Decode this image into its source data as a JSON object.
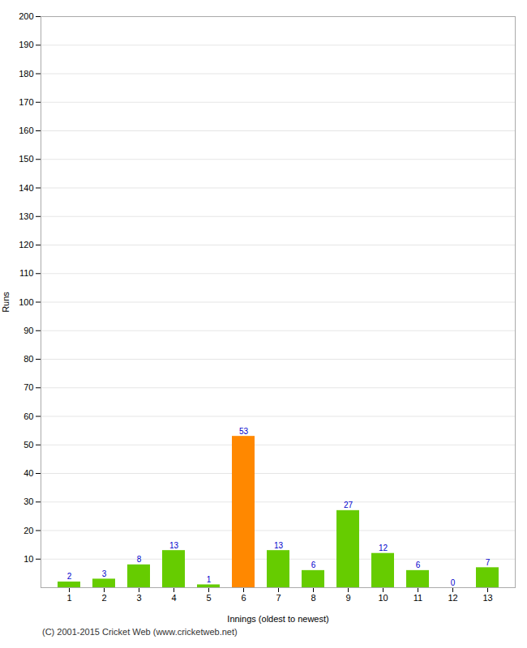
{
  "chart_data": {
    "type": "bar",
    "xlabel": "Innings (oldest to newest)",
    "ylabel": "Runs",
    "categories": [
      "1",
      "2",
      "3",
      "4",
      "5",
      "6",
      "7",
      "8",
      "9",
      "10",
      "11",
      "12",
      "13"
    ],
    "values": [
      2,
      3,
      8,
      13,
      1,
      53,
      13,
      6,
      27,
      12,
      6,
      0,
      7
    ],
    "colors": [
      "#66cc00",
      "#66cc00",
      "#66cc00",
      "#66cc00",
      "#66cc00",
      "#ff8800",
      "#66cc00",
      "#66cc00",
      "#66cc00",
      "#66cc00",
      "#66cc00",
      "#66cc00",
      "#66cc00"
    ],
    "ylim": [
      0,
      200
    ],
    "yticks": [
      10,
      20,
      30,
      40,
      50,
      60,
      70,
      80,
      90,
      100,
      110,
      120,
      130,
      140,
      150,
      160,
      170,
      180,
      190,
      200
    ],
    "grid": true,
    "data_labels": true,
    "label_color": "#0000cc",
    "caption": "(C) 2001-2015 Cricket Web (www.cricketweb.net)"
  }
}
